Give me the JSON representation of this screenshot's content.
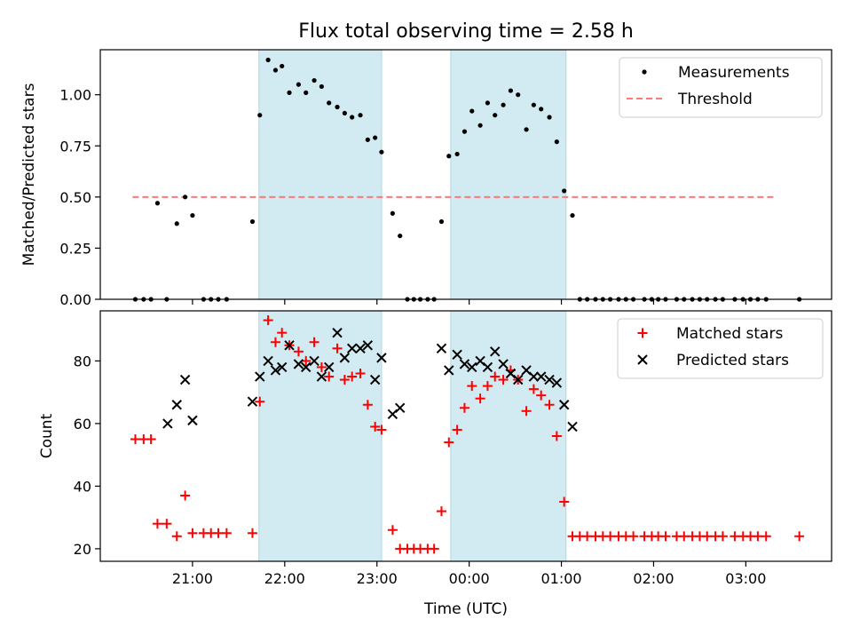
{
  "chart_data": {
    "title": "Flux total observing time = 2.58 h",
    "xlabel": "Time (UTC)",
    "x_tick_labels": [
      "21:00",
      "22:00",
      "23:00",
      "00:00",
      "01:00",
      "02:00",
      "03:00"
    ],
    "x_tick_hours": [
      21,
      22,
      23,
      24,
      25,
      26,
      27
    ],
    "xlim_hours": [
      20.0,
      27.93
    ],
    "shaded_intervals_hours": [
      [
        21.72,
        23.05
      ],
      [
        23.8,
        25.05
      ]
    ],
    "shade_color": "#add8e6",
    "top": {
      "type": "scatter",
      "ylabel": "Matched/Predicted stars",
      "ylim": [
        0,
        1.22
      ],
      "yticks": [
        "0.00",
        "0.25",
        "0.50",
        "0.75",
        "1.00"
      ],
      "threshold": {
        "label": "Threshold",
        "value": 0.5,
        "x_range": [
          20.35,
          27.3
        ],
        "color": "#ff7777"
      },
      "legend": [
        "Measurements",
        "Threshold"
      ],
      "legend_position": "upper right",
      "series": [
        {
          "name": "Measurements",
          "color": "#000000",
          "points": [
            [
              20.38,
              0
            ],
            [
              20.47,
              0
            ],
            [
              20.55,
              0
            ],
            [
              20.62,
              0.47
            ],
            [
              20.72,
              0
            ],
            [
              20.83,
              0.37
            ],
            [
              20.92,
              0.5
            ],
            [
              21.0,
              0.41
            ],
            [
              21.12,
              0
            ],
            [
              21.2,
              0
            ],
            [
              21.28,
              0
            ],
            [
              21.37,
              0
            ],
            [
              21.65,
              0.38
            ],
            [
              21.73,
              0.9
            ],
            [
              21.82,
              1.17
            ],
            [
              21.9,
              1.12
            ],
            [
              21.97,
              1.14
            ],
            [
              22.05,
              1.01
            ],
            [
              22.15,
              1.05
            ],
            [
              22.23,
              1.01
            ],
            [
              22.32,
              1.07
            ],
            [
              22.4,
              1.04
            ],
            [
              22.48,
              0.96
            ],
            [
              22.57,
              0.94
            ],
            [
              22.65,
              0.91
            ],
            [
              22.73,
              0.89
            ],
            [
              22.82,
              0.9
            ],
            [
              22.9,
              0.78
            ],
            [
              22.98,
              0.79
            ],
            [
              23.05,
              0.72
            ],
            [
              23.17,
              0.42
            ],
            [
              23.25,
              0.31
            ],
            [
              23.33,
              0
            ],
            [
              23.4,
              0
            ],
            [
              23.47,
              0
            ],
            [
              23.55,
              0
            ],
            [
              23.62,
              0
            ],
            [
              23.7,
              0.38
            ],
            [
              23.78,
              0.7
            ],
            [
              23.87,
              0.71
            ],
            [
              23.95,
              0.82
            ],
            [
              24.03,
              0.92
            ],
            [
              24.12,
              0.85
            ],
            [
              24.2,
              0.96
            ],
            [
              24.28,
              0.9
            ],
            [
              24.37,
              0.95
            ],
            [
              24.45,
              1.02
            ],
            [
              24.53,
              1.0
            ],
            [
              24.62,
              0.83
            ],
            [
              24.7,
              0.95
            ],
            [
              24.78,
              0.93
            ],
            [
              24.87,
              0.89
            ],
            [
              24.95,
              0.77
            ],
            [
              25.03,
              0.53
            ],
            [
              25.12,
              0.41
            ],
            [
              25.2,
              0
            ],
            [
              25.28,
              0
            ],
            [
              25.37,
              0
            ],
            [
              25.45,
              0
            ],
            [
              25.53,
              0
            ],
            [
              25.62,
              0
            ],
            [
              25.7,
              0
            ],
            [
              25.78,
              0
            ],
            [
              25.9,
              0
            ],
            [
              25.98,
              0
            ],
            [
              26.05,
              0
            ],
            [
              26.13,
              0
            ],
            [
              26.25,
              0
            ],
            [
              26.33,
              0
            ],
            [
              26.42,
              0
            ],
            [
              26.5,
              0
            ],
            [
              26.58,
              0
            ],
            [
              26.67,
              0
            ],
            [
              26.75,
              0
            ],
            [
              26.88,
              0
            ],
            [
              26.97,
              0
            ],
            [
              27.05,
              0
            ],
            [
              27.13,
              0
            ],
            [
              27.22,
              0
            ],
            [
              27.58,
              0
            ]
          ]
        }
      ]
    },
    "bottom": {
      "type": "scatter",
      "ylabel": "Count",
      "ylim": [
        16,
        96
      ],
      "yticks": [
        "20",
        "40",
        "60",
        "80"
      ],
      "legend": [
        "Matched stars",
        "Predicted stars"
      ],
      "legend_position": "upper right",
      "series": [
        {
          "name": "Matched stars",
          "marker": "plus",
          "color": "#ff0000",
          "points": [
            [
              20.38,
              55
            ],
            [
              20.47,
              55
            ],
            [
              20.55,
              55
            ],
            [
              20.62,
              28
            ],
            [
              20.72,
              28
            ],
            [
              20.83,
              24
            ],
            [
              20.92,
              37
            ],
            [
              21.0,
              25
            ],
            [
              21.12,
              25
            ],
            [
              21.2,
              25
            ],
            [
              21.28,
              25
            ],
            [
              21.37,
              25
            ],
            [
              21.65,
              25
            ],
            [
              21.73,
              67
            ],
            [
              21.82,
              93
            ],
            [
              21.9,
              86
            ],
            [
              21.97,
              89
            ],
            [
              22.05,
              85
            ],
            [
              22.15,
              83
            ],
            [
              22.23,
              80
            ],
            [
              22.32,
              86
            ],
            [
              22.4,
              78
            ],
            [
              22.48,
              75
            ],
            [
              22.57,
              84
            ],
            [
              22.65,
              74
            ],
            [
              22.73,
              75
            ],
            [
              22.82,
              76
            ],
            [
              22.9,
              66
            ],
            [
              22.98,
              59
            ],
            [
              23.05,
              58
            ],
            [
              23.17,
              26
            ],
            [
              23.25,
              20
            ],
            [
              23.33,
              20
            ],
            [
              23.4,
              20
            ],
            [
              23.47,
              20
            ],
            [
              23.55,
              20
            ],
            [
              23.62,
              20
            ],
            [
              23.7,
              32
            ],
            [
              23.78,
              54
            ],
            [
              23.87,
              58
            ],
            [
              23.95,
              65
            ],
            [
              24.03,
              72
            ],
            [
              24.12,
              68
            ],
            [
              24.2,
              72
            ],
            [
              24.28,
              75
            ],
            [
              24.37,
              74
            ],
            [
              24.45,
              77
            ],
            [
              24.53,
              74
            ],
            [
              24.62,
              64
            ],
            [
              24.7,
              71
            ],
            [
              24.78,
              69
            ],
            [
              24.87,
              66
            ],
            [
              24.95,
              56
            ],
            [
              25.03,
              35
            ],
            [
              25.12,
              24
            ],
            [
              25.2,
              24
            ],
            [
              25.28,
              24
            ],
            [
              25.37,
              24
            ],
            [
              25.45,
              24
            ],
            [
              25.53,
              24
            ],
            [
              25.62,
              24
            ],
            [
              25.7,
              24
            ],
            [
              25.78,
              24
            ],
            [
              25.9,
              24
            ],
            [
              25.98,
              24
            ],
            [
              26.05,
              24
            ],
            [
              26.13,
              24
            ],
            [
              26.25,
              24
            ],
            [
              26.33,
              24
            ],
            [
              26.42,
              24
            ],
            [
              26.5,
              24
            ],
            [
              26.58,
              24
            ],
            [
              26.67,
              24
            ],
            [
              26.75,
              24
            ],
            [
              26.88,
              24
            ],
            [
              26.97,
              24
            ],
            [
              27.05,
              24
            ],
            [
              27.13,
              24
            ],
            [
              27.22,
              24
            ],
            [
              27.58,
              24
            ]
          ]
        },
        {
          "name": "Predicted stars",
          "marker": "x",
          "color": "#000000",
          "points": [
            [
              20.83,
              66
            ],
            [
              20.73,
              60
            ],
            [
              20.92,
              74
            ],
            [
              21.0,
              61
            ],
            [
              21.65,
              67
            ],
            [
              21.73,
              75
            ],
            [
              21.82,
              80
            ],
            [
              21.9,
              77
            ],
            [
              21.97,
              78
            ],
            [
              22.05,
              85
            ],
            [
              22.15,
              79
            ],
            [
              22.23,
              78
            ],
            [
              22.32,
              80
            ],
            [
              22.4,
              75
            ],
            [
              22.48,
              78
            ],
            [
              22.57,
              89
            ],
            [
              22.65,
              81
            ],
            [
              22.73,
              84
            ],
            [
              22.82,
              84
            ],
            [
              22.9,
              85
            ],
            [
              22.98,
              74
            ],
            [
              23.05,
              81
            ],
            [
              23.17,
              63
            ],
            [
              23.25,
              65
            ],
            [
              23.7,
              84
            ],
            [
              23.78,
              77
            ],
            [
              23.87,
              82
            ],
            [
              23.95,
              79
            ],
            [
              24.03,
              78
            ],
            [
              24.12,
              80
            ],
            [
              24.2,
              78
            ],
            [
              24.28,
              83
            ],
            [
              24.37,
              79
            ],
            [
              24.45,
              76
            ],
            [
              24.53,
              74
            ],
            [
              24.62,
              77
            ],
            [
              24.7,
              75
            ],
            [
              24.78,
              75
            ],
            [
              24.87,
              74
            ],
            [
              24.95,
              73
            ],
            [
              25.03,
              66
            ],
            [
              25.12,
              59
            ]
          ]
        }
      ]
    }
  }
}
